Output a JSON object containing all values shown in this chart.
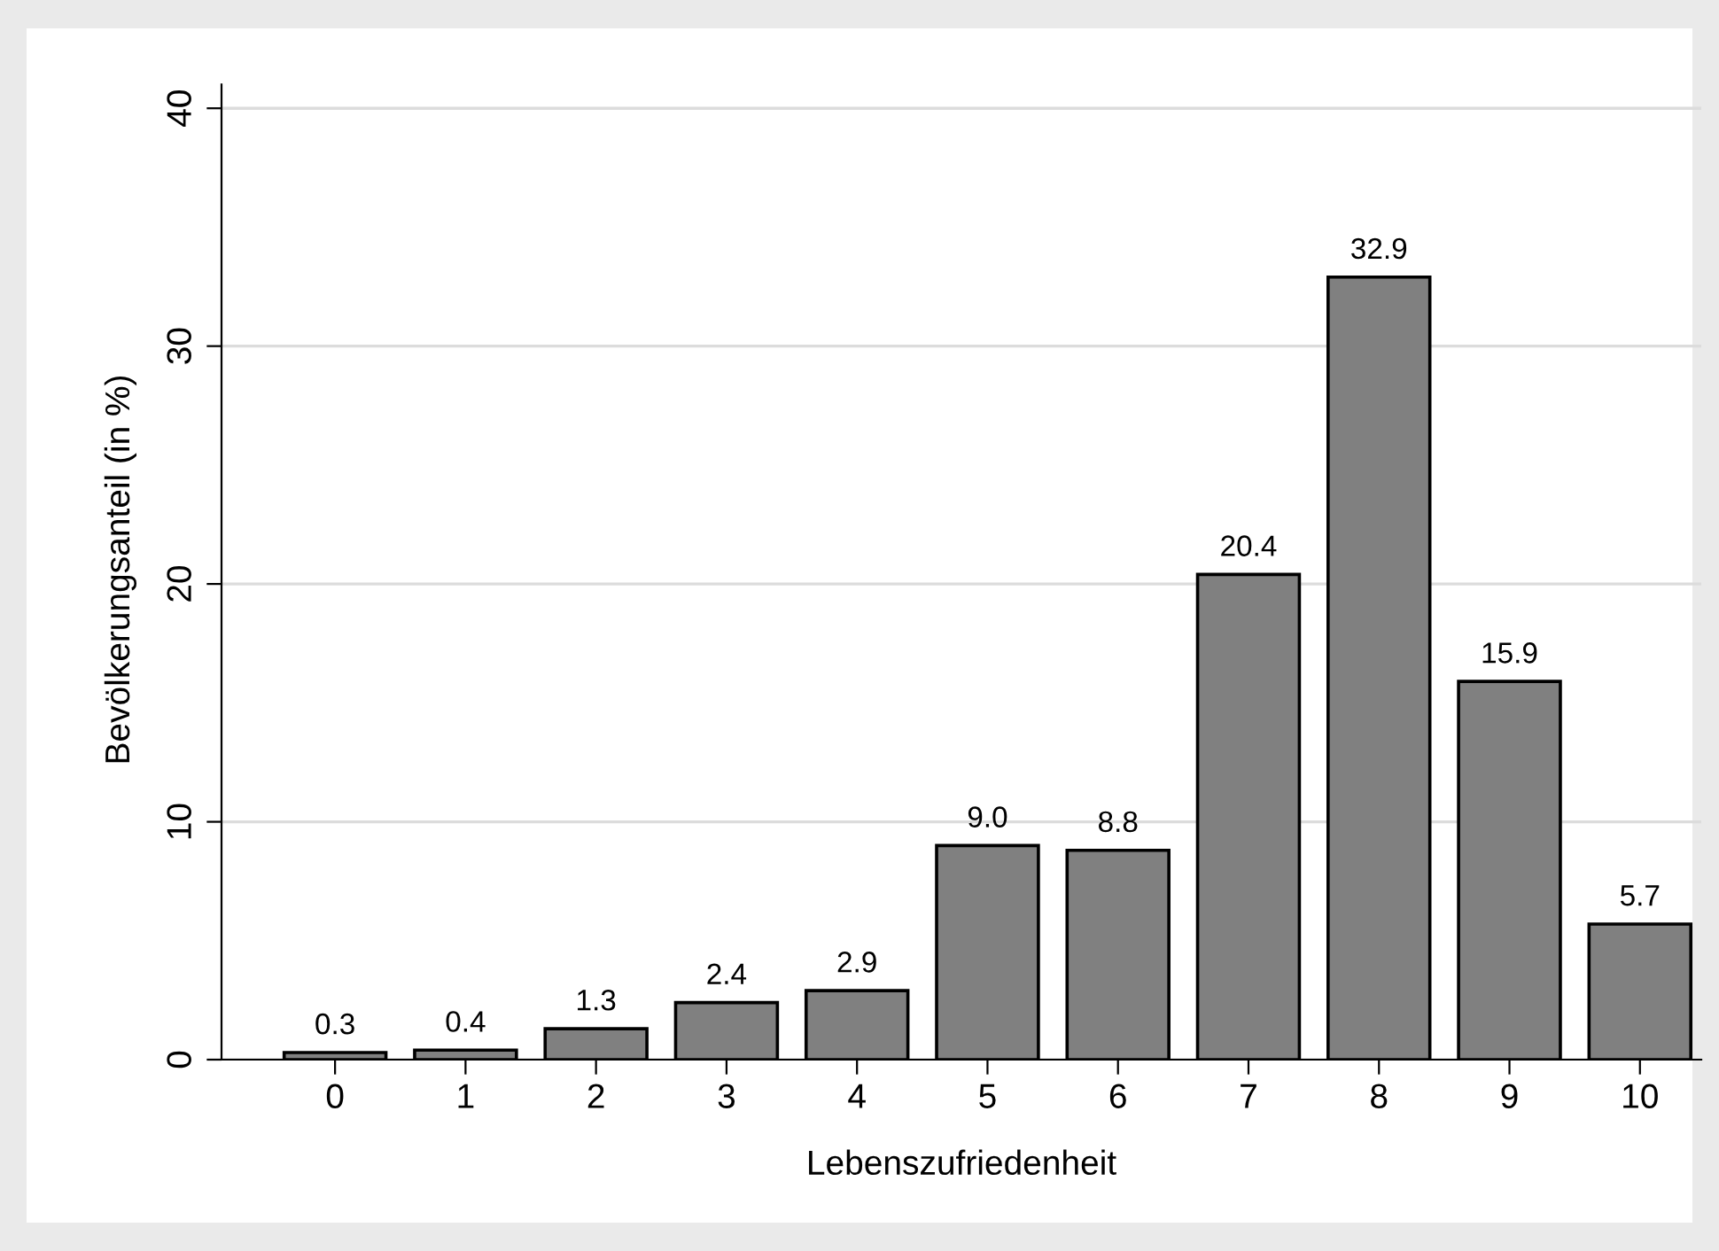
{
  "chart_data": {
    "type": "bar",
    "xlabel": "Lebenszufriedenheit",
    "ylabel": "Bevölkerungsanteil (in %)",
    "categories": [
      "0",
      "1",
      "2",
      "3",
      "4",
      "5",
      "6",
      "7",
      "8",
      "9",
      "10"
    ],
    "values": [
      0.3,
      0.4,
      1.3,
      2.4,
      2.9,
      9.0,
      8.8,
      20.4,
      32.9,
      15.9,
      5.7
    ],
    "value_labels": [
      "0.3",
      "0.4",
      "1.3",
      "2.4",
      "2.9",
      "9.0",
      "8.8",
      "20.4",
      "32.9",
      "15.9",
      "5.7"
    ],
    "color": "#808080",
    "ylim": [
      0,
      40
    ],
    "yticks": [
      0,
      10,
      20,
      30,
      40
    ],
    "grid": "y"
  }
}
